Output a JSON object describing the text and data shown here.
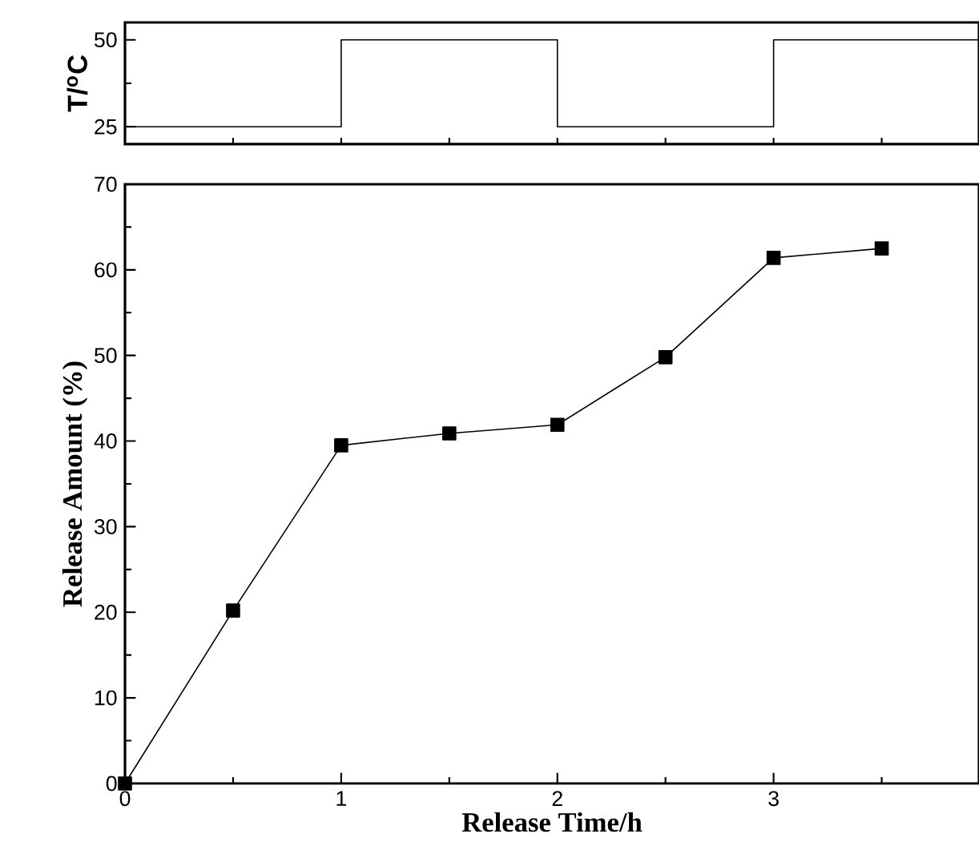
{
  "chart_data": [
    {
      "type": "step",
      "ylabel": "T/$^{o}$C",
      "x": [
        0,
        1,
        2,
        3,
        3.95
      ],
      "values": [
        25,
        50,
        25,
        50,
        50
      ],
      "color": "#000000",
      "xlim": [
        0,
        3.95
      ],
      "ylim": [
        20,
        55
      ],
      "xticks": [
        {
          "value": 0.5,
          "label": null
        },
        {
          "value": 1,
          "label": null
        },
        {
          "value": 1.5,
          "label": null
        },
        {
          "value": 2,
          "label": null
        },
        {
          "value": 2.5,
          "label": null
        },
        {
          "value": 3,
          "label": null
        },
        {
          "value": 3.5,
          "label": null
        }
      ],
      "yticks": [
        25,
        {
          "value": 37.5,
          "label": null
        },
        50
      ],
      "tick_labels": "y",
      "marker": "none",
      "line_style": "solid"
    },
    {
      "type": "line",
      "xlabel": "Release Time/h",
      "ylabel": "Release Amount (%)",
      "x": [
        0,
        0.5,
        1,
        1.5,
        2,
        2.5,
        3,
        3.5
      ],
      "values": [
        0,
        20.2,
        39.5,
        40.9,
        41.9,
        49.8,
        61.4,
        62.5
      ],
      "color": "#000000",
      "xlim": [
        0,
        3.95
      ],
      "ylim": [
        0,
        70
      ],
      "xticks": [
        0,
        {
          "value": 0.5,
          "label": null
        },
        1,
        {
          "value": 1.5,
          "label": null
        },
        2,
        {
          "value": 2.5,
          "label": null
        },
        3,
        {
          "value": 3.5,
          "label": null
        }
      ],
      "yticks": [
        0,
        {
          "value": 5,
          "label": null
        },
        10,
        {
          "value": 15,
          "label": null
        },
        20,
        {
          "value": 25,
          "label": null
        },
        30,
        {
          "value": 35,
          "label": null
        },
        40,
        {
          "value": 45,
          "label": null
        },
        50,
        {
          "value": 55,
          "label": null
        },
        60,
        {
          "value": 65,
          "label": null
        },
        70
      ],
      "marker": "square",
      "line_style": "solid"
    }
  ]
}
